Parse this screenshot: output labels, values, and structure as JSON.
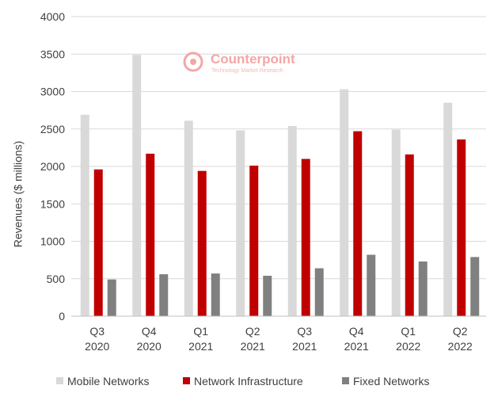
{
  "watermark": {
    "brand": "Counterpoint",
    "tagline": "Technology Market Research"
  },
  "chart_data": {
    "type": "bar",
    "categories": [
      [
        "Q3",
        "2020"
      ],
      [
        "Q4",
        "2020"
      ],
      [
        "Q1",
        "2021"
      ],
      [
        "Q2",
        "2021"
      ],
      [
        "Q3",
        "2021"
      ],
      [
        "Q4",
        "2021"
      ],
      [
        "Q1",
        "2022"
      ],
      [
        "Q2",
        "2022"
      ]
    ],
    "ylabel": "Revenues ($ millions)",
    "ylim": [
      0,
      4000
    ],
    "yticks": [
      0,
      500,
      1000,
      1500,
      2000,
      2500,
      3000,
      3500,
      4000
    ],
    "grid": true,
    "legend_position": "bottom",
    "series": [
      {
        "name": "Mobile Networks",
        "color": "#d9d9d9",
        "values": [
          2690,
          3490,
          2610,
          2480,
          2540,
          3030,
          2490,
          2850
        ]
      },
      {
        "name": "Network Infrastructure",
        "color": "#c00000",
        "values": [
          1960,
          2170,
          1940,
          2010,
          2100,
          2470,
          2160,
          2360
        ]
      },
      {
        "name": "Fixed Networks",
        "color": "#808080",
        "values": [
          490,
          560,
          570,
          540,
          640,
          820,
          730,
          790
        ]
      }
    ]
  }
}
